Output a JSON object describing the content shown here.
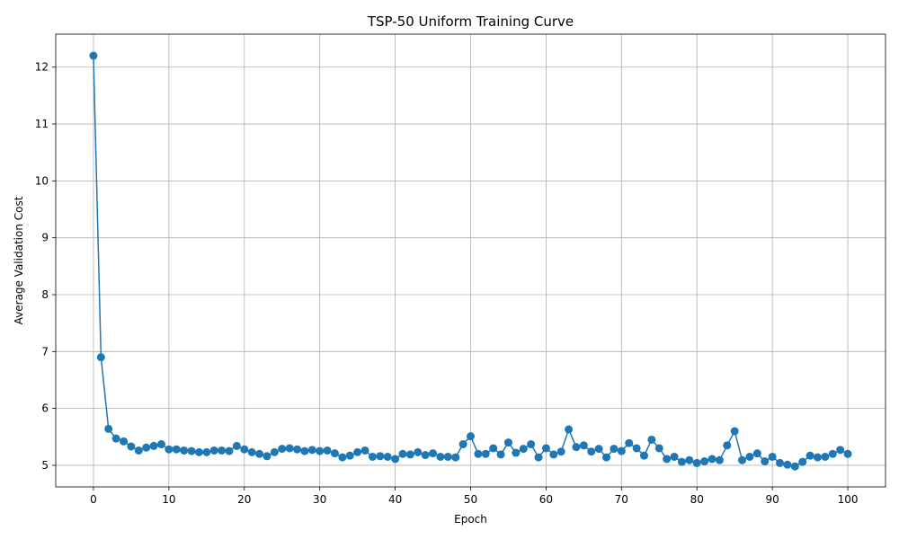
{
  "chart_data": {
    "type": "line",
    "title": "TSP-50 Uniform Training Curve",
    "xlabel": "Epoch",
    "ylabel": "Average Validation Cost",
    "xlim": [
      -5,
      105
    ],
    "ylim": [
      4.62,
      12.58
    ],
    "xticks": [
      0,
      10,
      20,
      30,
      40,
      50,
      60,
      70,
      80,
      90,
      100
    ],
    "yticks": [
      5,
      6,
      7,
      8,
      9,
      10,
      11,
      12
    ],
    "grid": true,
    "markers": true,
    "line_color": "#1f77b4",
    "x": [
      0,
      1,
      2,
      3,
      4,
      5,
      6,
      7,
      8,
      9,
      10,
      11,
      12,
      13,
      14,
      15,
      16,
      17,
      18,
      19,
      20,
      21,
      22,
      23,
      24,
      25,
      26,
      27,
      28,
      29,
      30,
      31,
      32,
      33,
      34,
      35,
      36,
      37,
      38,
      39,
      40,
      41,
      42,
      43,
      44,
      45,
      46,
      47,
      48,
      49,
      50,
      51,
      52,
      53,
      54,
      55,
      56,
      57,
      58,
      59,
      60,
      61,
      62,
      63,
      64,
      65,
      66,
      67,
      68,
      69,
      70,
      71,
      72,
      73,
      74,
      75,
      76,
      77,
      78,
      79,
      80,
      81,
      82,
      83,
      84,
      85,
      86,
      87,
      88,
      89,
      90,
      91,
      92,
      93,
      94,
      95,
      96,
      97,
      98,
      99,
      100
    ],
    "values": [
      12.2,
      6.9,
      5.64,
      5.47,
      5.42,
      5.33,
      5.26,
      5.31,
      5.34,
      5.37,
      5.28,
      5.28,
      5.26,
      5.25,
      5.23,
      5.23,
      5.26,
      5.26,
      5.25,
      5.34,
      5.28,
      5.23,
      5.2,
      5.16,
      5.23,
      5.29,
      5.3,
      5.28,
      5.25,
      5.27,
      5.25,
      5.26,
      5.21,
      5.14,
      5.17,
      5.23,
      5.26,
      5.15,
      5.16,
      5.15,
      5.11,
      5.2,
      5.19,
      5.23,
      5.18,
      5.21,
      5.15,
      5.15,
      5.14,
      5.37,
      5.51,
      5.2,
      5.2,
      5.3,
      5.19,
      5.4,
      5.22,
      5.29,
      5.37,
      5.14,
      5.3,
      5.19,
      5.24,
      5.63,
      5.32,
      5.35,
      5.24,
      5.29,
      5.14,
      5.29,
      5.25,
      5.39,
      5.3,
      5.17,
      5.45,
      5.3,
      5.11,
      5.15,
      5.06,
      5.09,
      5.04,
      5.07,
      5.11,
      5.09,
      5.35,
      5.6,
      5.09,
      5.15,
      5.21,
      5.07,
      5.15,
      5.04,
      5.01,
      4.98,
      5.06,
      5.17,
      5.14,
      5.15,
      5.2,
      5.27,
      5.2
    ]
  }
}
